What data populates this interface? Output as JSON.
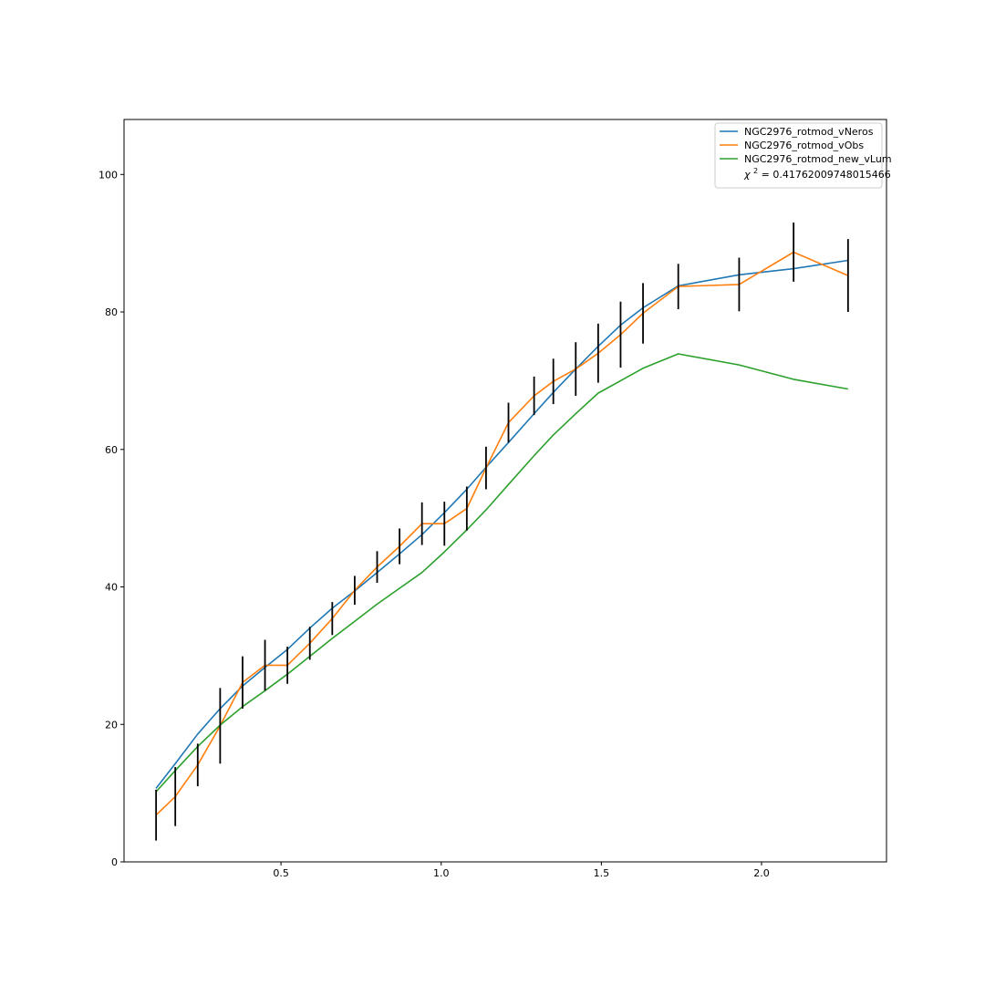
{
  "chart_data": {
    "type": "line",
    "title": "",
    "xlabel": "",
    "ylabel": "",
    "xlim": [
      0.01,
      2.39
    ],
    "ylim": [
      0,
      108
    ],
    "xticks": [
      0.5,
      1.0,
      1.5,
      2.0
    ],
    "xtick_labels": [
      "0.5",
      "1.0",
      "1.5",
      "2.0"
    ],
    "yticks": [
      0,
      20,
      40,
      60,
      80,
      100
    ],
    "ytick_labels": [
      "0",
      "20",
      "40",
      "60",
      "80",
      "100"
    ],
    "grid": false,
    "legend_position": "top-right",
    "x": [
      0.11,
      0.17,
      0.24,
      0.31,
      0.38,
      0.45,
      0.52,
      0.59,
      0.66,
      0.73,
      0.8,
      0.87,
      0.94,
      1.01,
      1.08,
      1.14,
      1.21,
      1.29,
      1.35,
      1.42,
      1.49,
      1.56,
      1.63,
      1.74,
      1.93,
      2.1,
      2.27
    ],
    "series": [
      {
        "name": "NGC2976_rotmod_vNeros",
        "color": "#1f77b4",
        "values": [
          10.7,
          14.3,
          18.6,
          22.3,
          25.6,
          28.3,
          30.9,
          34.0,
          36.9,
          39.4,
          42.1,
          44.8,
          47.6,
          50.8,
          54.2,
          57.4,
          61.0,
          65.2,
          68.3,
          71.7,
          75.0,
          78.1,
          80.6,
          83.8,
          85.4,
          86.3,
          87.5
        ]
      },
      {
        "name": "NGC2976_rotmod_vObs",
        "color": "#ff7f0e",
        "values": [
          6.8,
          9.5,
          14.1,
          19.8,
          26.1,
          28.6,
          28.6,
          31.8,
          35.4,
          39.5,
          42.9,
          45.9,
          49.2,
          49.2,
          51.4,
          57.3,
          63.9,
          67.8,
          69.9,
          71.7,
          74.0,
          76.7,
          79.8,
          83.7,
          84.0,
          88.7,
          85.3
        ],
        "errors": [
          3.7,
          4.3,
          3.1,
          5.5,
          3.8,
          3.7,
          2.7,
          2.4,
          2.4,
          2.1,
          2.3,
          2.6,
          3.1,
          3.2,
          3.2,
          3.1,
          2.9,
          2.8,
          3.3,
          3.9,
          4.3,
          4.8,
          4.4,
          3.3,
          3.9,
          4.3,
          5.3
        ],
        "error_color": "#000000"
      },
      {
        "name": "NGC2976_rotmod_new_vLum",
        "color": "#2ca02c",
        "values": [
          10.2,
          13.3,
          16.8,
          19.9,
          22.6,
          24.9,
          27.3,
          29.9,
          32.5,
          35.0,
          37.5,
          39.8,
          42.1,
          45.1,
          48.3,
          51.2,
          54.9,
          59.1,
          62.1,
          65.2,
          68.2,
          70.0,
          71.8,
          73.9,
          72.3,
          70.2,
          68.8
        ]
      }
    ],
    "legend": {
      "entries": [
        "NGC2976_rotmod_vNeros",
        "NGC2976_rotmod_vObs",
        "NGC2976_rotmod_new_vLum"
      ],
      "chi_label_prefix": "χ",
      "chi_superscript": "2",
      "chi_value_text": " = 0.41762009748015466"
    }
  }
}
